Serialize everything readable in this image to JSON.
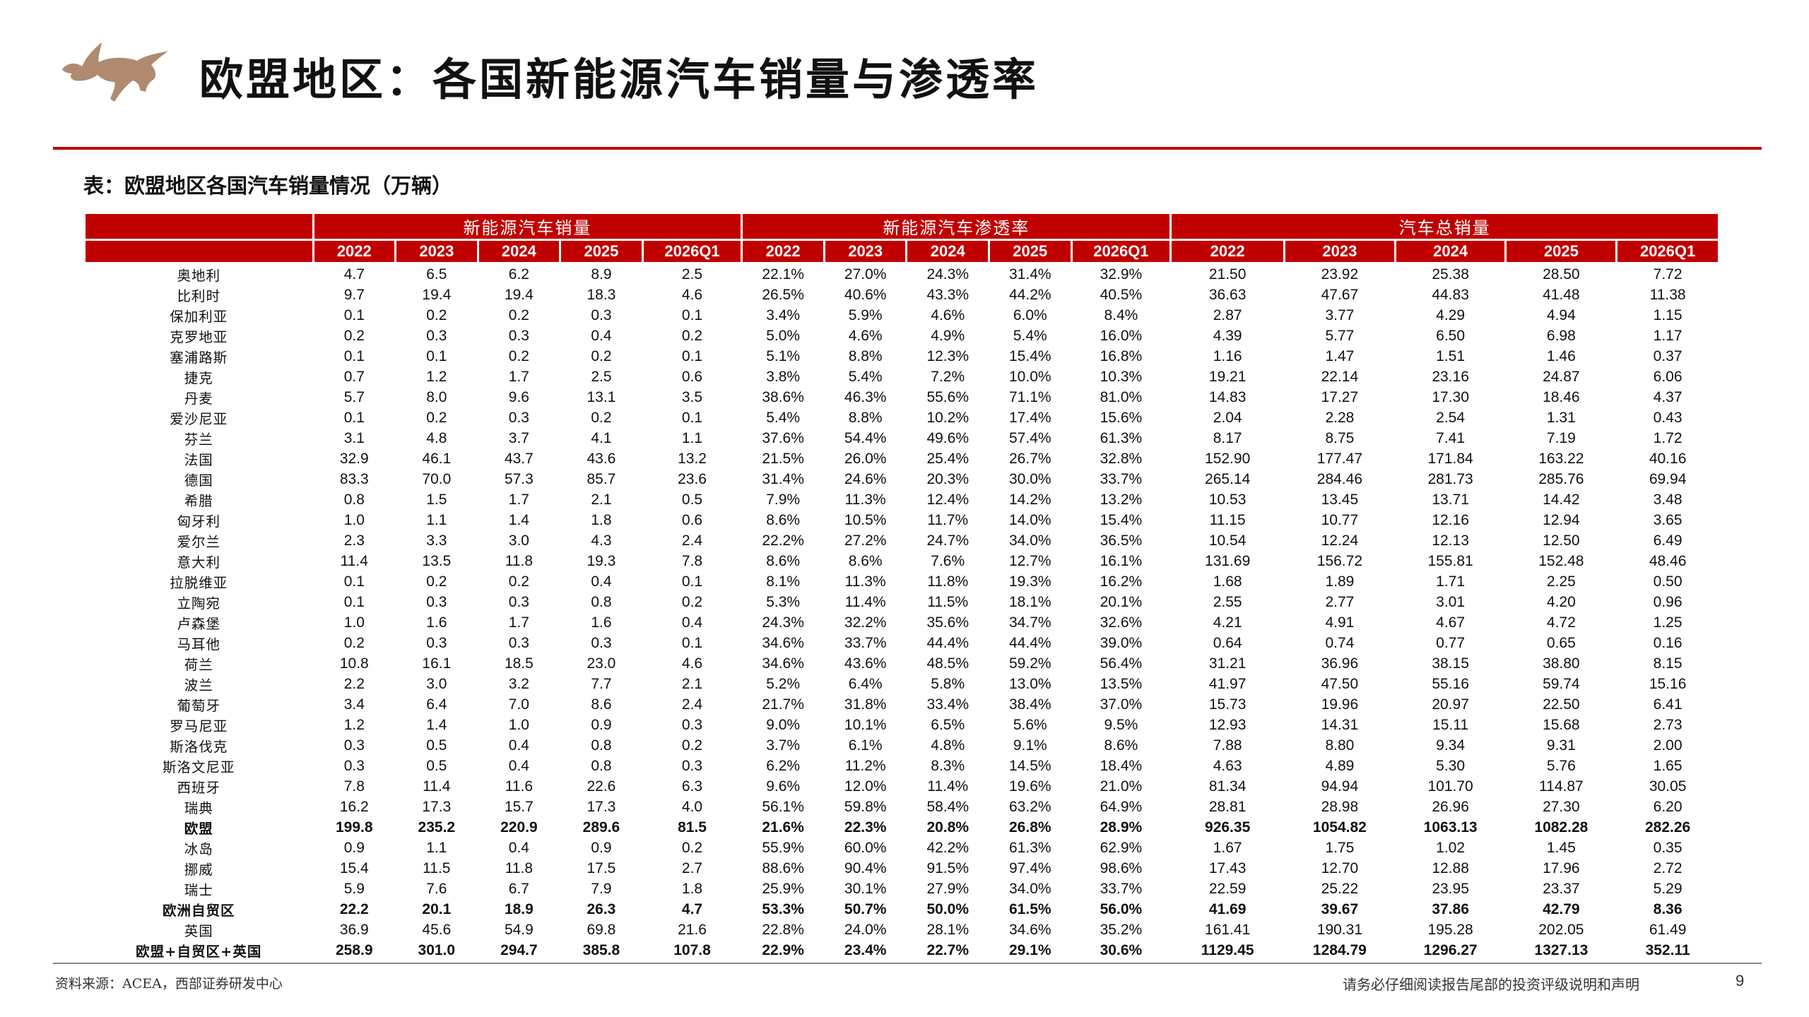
{
  "page_title": "欧盟地区：各国新能源汽车销量与渗透率",
  "table_caption": "表：欧盟地区各国汽车销量情况（万辆）",
  "table": {
    "groups": [
      "新能源汽车销量",
      "新能源汽车渗透率",
      "汽车总销量"
    ],
    "years": [
      "2022",
      "2023",
      "2024",
      "2025",
      "2026Q1"
    ],
    "rows": [
      {
        "country": "奥地利",
        "values": [
          "4.7",
          "6.5",
          "6.2",
          "8.9",
          "2.5",
          "22.1%",
          "27.0%",
          "24.3%",
          "31.4%",
          "32.9%",
          "21.50",
          "23.92",
          "25.38",
          "28.50",
          "7.72"
        ]
      },
      {
        "country": "比利时",
        "values": [
          "9.7",
          "19.4",
          "19.4",
          "18.3",
          "4.6",
          "26.5%",
          "40.6%",
          "43.3%",
          "44.2%",
          "40.5%",
          "36.63",
          "47.67",
          "44.83",
          "41.48",
          "11.38"
        ]
      },
      {
        "country": "保加利亚",
        "values": [
          "0.1",
          "0.2",
          "0.2",
          "0.3",
          "0.1",
          "3.4%",
          "5.9%",
          "4.6%",
          "6.0%",
          "8.4%",
          "2.87",
          "3.77",
          "4.29",
          "4.94",
          "1.15"
        ]
      },
      {
        "country": "克罗地亚",
        "values": [
          "0.2",
          "0.3",
          "0.3",
          "0.4",
          "0.2",
          "5.0%",
          "4.6%",
          "4.9%",
          "5.4%",
          "16.0%",
          "4.39",
          "5.77",
          "6.50",
          "6.98",
          "1.17"
        ]
      },
      {
        "country": "塞浦路斯",
        "values": [
          "0.1",
          "0.1",
          "0.2",
          "0.2",
          "0.1",
          "5.1%",
          "8.8%",
          "12.3%",
          "15.4%",
          "16.8%",
          "1.16",
          "1.47",
          "1.51",
          "1.46",
          "0.37"
        ]
      },
      {
        "country": "捷克",
        "values": [
          "0.7",
          "1.2",
          "1.7",
          "2.5",
          "0.6",
          "3.8%",
          "5.4%",
          "7.2%",
          "10.0%",
          "10.3%",
          "19.21",
          "22.14",
          "23.16",
          "24.87",
          "6.06"
        ]
      },
      {
        "country": "丹麦",
        "values": [
          "5.7",
          "8.0",
          "9.6",
          "13.1",
          "3.5",
          "38.6%",
          "46.3%",
          "55.6%",
          "71.1%",
          "81.0%",
          "14.83",
          "17.27",
          "17.30",
          "18.46",
          "4.37"
        ]
      },
      {
        "country": "爱沙尼亚",
        "values": [
          "0.1",
          "0.2",
          "0.3",
          "0.2",
          "0.1",
          "5.4%",
          "8.8%",
          "10.2%",
          "17.4%",
          "15.6%",
          "2.04",
          "2.28",
          "2.54",
          "1.31",
          "0.43"
        ]
      },
      {
        "country": "芬兰",
        "values": [
          "3.1",
          "4.8",
          "3.7",
          "4.1",
          "1.1",
          "37.6%",
          "54.4%",
          "49.6%",
          "57.4%",
          "61.3%",
          "8.17",
          "8.75",
          "7.41",
          "7.19",
          "1.72"
        ]
      },
      {
        "country": "法国",
        "values": [
          "32.9",
          "46.1",
          "43.7",
          "43.6",
          "13.2",
          "21.5%",
          "26.0%",
          "25.4%",
          "26.7%",
          "32.8%",
          "152.90",
          "177.47",
          "171.84",
          "163.22",
          "40.16"
        ]
      },
      {
        "country": "德国",
        "values": [
          "83.3",
          "70.0",
          "57.3",
          "85.7",
          "23.6",
          "31.4%",
          "24.6%",
          "20.3%",
          "30.0%",
          "33.7%",
          "265.14",
          "284.46",
          "281.73",
          "285.76",
          "69.94"
        ]
      },
      {
        "country": "希腊",
        "values": [
          "0.8",
          "1.5",
          "1.7",
          "2.1",
          "0.5",
          "7.9%",
          "11.3%",
          "12.4%",
          "14.2%",
          "13.2%",
          "10.53",
          "13.45",
          "13.71",
          "14.42",
          "3.48"
        ]
      },
      {
        "country": "匈牙利",
        "values": [
          "1.0",
          "1.1",
          "1.4",
          "1.8",
          "0.6",
          "8.6%",
          "10.5%",
          "11.7%",
          "14.0%",
          "15.4%",
          "11.15",
          "10.77",
          "12.16",
          "12.94",
          "3.65"
        ]
      },
      {
        "country": "爱尔兰",
        "values": [
          "2.3",
          "3.3",
          "3.0",
          "4.3",
          "2.4",
          "22.2%",
          "27.2%",
          "24.7%",
          "34.0%",
          "36.5%",
          "10.54",
          "12.24",
          "12.13",
          "12.50",
          "6.49"
        ]
      },
      {
        "country": "意大利",
        "values": [
          "11.4",
          "13.5",
          "11.8",
          "19.3",
          "7.8",
          "8.6%",
          "8.6%",
          "7.6%",
          "12.7%",
          "16.1%",
          "131.69",
          "156.72",
          "155.81",
          "152.48",
          "48.46"
        ]
      },
      {
        "country": "拉脱维亚",
        "values": [
          "0.1",
          "0.2",
          "0.2",
          "0.4",
          "0.1",
          "8.1%",
          "11.3%",
          "11.8%",
          "19.3%",
          "16.2%",
          "1.68",
          "1.89",
          "1.71",
          "2.25",
          "0.50"
        ]
      },
      {
        "country": "立陶宛",
        "values": [
          "0.1",
          "0.3",
          "0.3",
          "0.8",
          "0.2",
          "5.3%",
          "11.4%",
          "11.5%",
          "18.1%",
          "20.1%",
          "2.55",
          "2.77",
          "3.01",
          "4.20",
          "0.96"
        ]
      },
      {
        "country": "卢森堡",
        "values": [
          "1.0",
          "1.6",
          "1.7",
          "1.6",
          "0.4",
          "24.3%",
          "32.2%",
          "35.6%",
          "34.7%",
          "32.6%",
          "4.21",
          "4.91",
          "4.67",
          "4.72",
          "1.25"
        ]
      },
      {
        "country": "马耳他",
        "values": [
          "0.2",
          "0.3",
          "0.3",
          "0.3",
          "0.1",
          "34.6%",
          "33.7%",
          "44.4%",
          "44.4%",
          "39.0%",
          "0.64",
          "0.74",
          "0.77",
          "0.65",
          "0.16"
        ]
      },
      {
        "country": "荷兰",
        "values": [
          "10.8",
          "16.1",
          "18.5",
          "23.0",
          "4.6",
          "34.6%",
          "43.6%",
          "48.5%",
          "59.2%",
          "56.4%",
          "31.21",
          "36.96",
          "38.15",
          "38.80",
          "8.15"
        ]
      },
      {
        "country": "波兰",
        "values": [
          "2.2",
          "3.0",
          "3.2",
          "7.7",
          "2.1",
          "5.2%",
          "6.4%",
          "5.8%",
          "13.0%",
          "13.5%",
          "41.97",
          "47.50",
          "55.16",
          "59.74",
          "15.16"
        ]
      },
      {
        "country": "葡萄牙",
        "values": [
          "3.4",
          "6.4",
          "7.0",
          "8.6",
          "2.4",
          "21.7%",
          "31.8%",
          "33.4%",
          "38.4%",
          "37.0%",
          "15.73",
          "19.96",
          "20.97",
          "22.50",
          "6.41"
        ]
      },
      {
        "country": "罗马尼亚",
        "values": [
          "1.2",
          "1.4",
          "1.0",
          "0.9",
          "0.3",
          "9.0%",
          "10.1%",
          "6.5%",
          "5.6%",
          "9.5%",
          "12.93",
          "14.31",
          "15.11",
          "15.68",
          "2.73"
        ]
      },
      {
        "country": "斯洛伐克",
        "values": [
          "0.3",
          "0.5",
          "0.4",
          "0.8",
          "0.2",
          "3.7%",
          "6.1%",
          "4.8%",
          "9.1%",
          "8.6%",
          "7.88",
          "8.80",
          "9.34",
          "9.31",
          "2.00"
        ]
      },
      {
        "country": "斯洛文尼亚",
        "values": [
          "0.3",
          "0.5",
          "0.4",
          "0.8",
          "0.3",
          "6.2%",
          "11.2%",
          "8.3%",
          "14.5%",
          "18.4%",
          "4.63",
          "4.89",
          "5.30",
          "5.76",
          "1.65"
        ]
      },
      {
        "country": "西班牙",
        "values": [
          "7.8",
          "11.4",
          "11.6",
          "22.6",
          "6.3",
          "9.6%",
          "12.0%",
          "11.4%",
          "19.6%",
          "21.0%",
          "81.34",
          "94.94",
          "101.70",
          "114.87",
          "30.05"
        ]
      },
      {
        "country": "瑞典",
        "values": [
          "16.2",
          "17.3",
          "15.7",
          "17.3",
          "4.0",
          "56.1%",
          "59.8%",
          "58.4%",
          "63.2%",
          "64.9%",
          "28.81",
          "28.98",
          "26.96",
          "27.30",
          "6.20"
        ]
      },
      {
        "country": "欧盟",
        "bold": true,
        "values": [
          "199.8",
          "235.2",
          "220.9",
          "289.6",
          "81.5",
          "21.6%",
          "22.3%",
          "20.8%",
          "26.8%",
          "28.9%",
          "926.35",
          "1054.82",
          "1063.13",
          "1082.28",
          "282.26"
        ]
      },
      {
        "country": "冰岛",
        "values": [
          "0.9",
          "1.1",
          "0.4",
          "0.9",
          "0.2",
          "55.9%",
          "60.0%",
          "42.2%",
          "61.3%",
          "62.9%",
          "1.67",
          "1.75",
          "1.02",
          "1.45",
          "0.35"
        ]
      },
      {
        "country": "挪威",
        "values": [
          "15.4",
          "11.5",
          "11.8",
          "17.5",
          "2.7",
          "88.6%",
          "90.4%",
          "91.5%",
          "97.4%",
          "98.6%",
          "17.43",
          "12.70",
          "12.88",
          "17.96",
          "2.72"
        ]
      },
      {
        "country": "瑞士",
        "values": [
          "5.9",
          "7.6",
          "6.7",
          "7.9",
          "1.8",
          "25.9%",
          "30.1%",
          "27.9%",
          "34.0%",
          "33.7%",
          "22.59",
          "25.22",
          "23.95",
          "23.37",
          "5.29"
        ]
      },
      {
        "country": "欧洲自贸区",
        "bold": true,
        "values": [
          "22.2",
          "20.1",
          "18.9",
          "26.3",
          "4.7",
          "53.3%",
          "50.7%",
          "50.0%",
          "61.5%",
          "56.0%",
          "41.69",
          "39.67",
          "37.86",
          "42.79",
          "8.36"
        ]
      },
      {
        "country": "英国",
        "values": [
          "36.9",
          "45.6",
          "54.9",
          "69.8",
          "21.6",
          "22.8%",
          "24.0%",
          "28.1%",
          "34.6%",
          "35.2%",
          "161.41",
          "190.31",
          "195.28",
          "202.05",
          "61.49"
        ]
      },
      {
        "country": "欧盟+自贸区+英国",
        "bold": true,
        "values": [
          "258.9",
          "301.0",
          "294.7",
          "385.8",
          "107.8",
          "22.9%",
          "23.4%",
          "22.7%",
          "29.1%",
          "30.6%",
          "1129.45",
          "1284.79",
          "1296.27",
          "1327.13",
          "352.11"
        ]
      }
    ]
  },
  "footer": {
    "source": "资料来源：ACEA，西部证券研发中心",
    "disclaimer": "请务必仔细阅读报告尾部的投资评级说明和声明",
    "page_number": "9"
  },
  "colors": {
    "accent": "#c00000",
    "logo": "#b08a6e"
  },
  "icons": {
    "logo": "bull-logo-icon"
  }
}
